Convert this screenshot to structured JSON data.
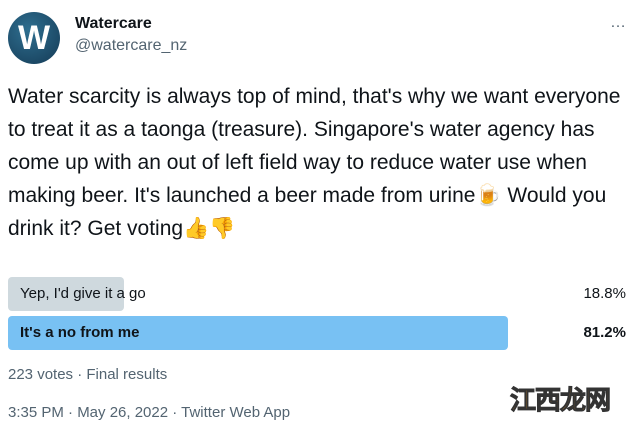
{
  "author": {
    "name": "Watercare",
    "handle": "@watercare_nz",
    "avatar_letter": "W"
  },
  "more_icon": "…",
  "tweet_text": "Water scarcity is always top of mind, that's why we want everyone to treat it as a taonga (treasure). Singapore's water agency has come up with an out of left field way to reduce water use when making beer. It's launched a beer made from urine🍺 Would you drink it? Get voting👍👎",
  "poll": {
    "options": [
      {
        "label": "Yep, I'd give it a go",
        "percent_text": "18.8%",
        "percent": 18.8,
        "winner": false
      },
      {
        "label": "It's a no from me",
        "percent_text": "81.2%",
        "percent": 81.2,
        "winner": true
      }
    ],
    "summary": "223 votes · Final results",
    "colors": {
      "winner": "#78c1f3",
      "other": "#cfd9de"
    }
  },
  "timestamp": "3:35 PM · May 26, 2022 · Twitter Web App",
  "watermark": "江西龙网"
}
